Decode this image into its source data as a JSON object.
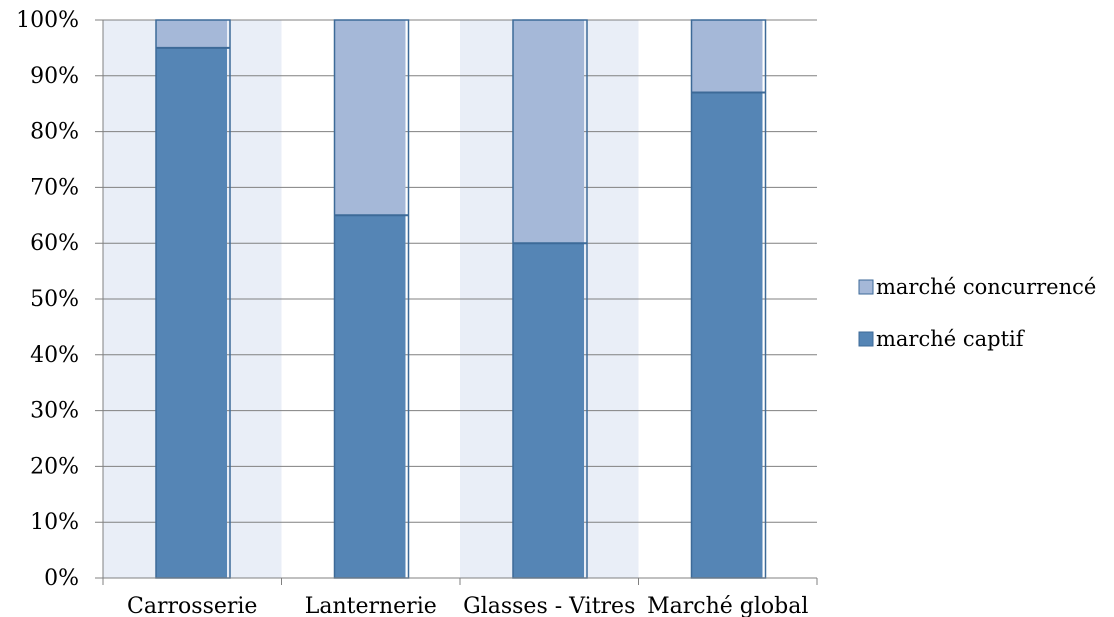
{
  "chart_data": {
    "type": "bar",
    "stacked": true,
    "percent": true,
    "categories": [
      "Carrosserie",
      "Lanternerie",
      "Glasses - Vitres",
      "Marché global"
    ],
    "series": [
      {
        "name": "marché captif",
        "values": [
          95,
          65,
          60,
          87
        ],
        "color": "#5585b5"
      },
      {
        "name": "marché concurrencé",
        "values": [
          5,
          35,
          40,
          13
        ],
        "color": "#a5b8d8"
      }
    ],
    "ylim": [
      0,
      100
    ],
    "yticks": [
      "0%",
      "10%",
      "20%",
      "30%",
      "40%",
      "50%",
      "60%",
      "70%",
      "80%",
      "90%",
      "100%"
    ],
    "grid": true,
    "legend_position": "right",
    "background_bands": [
      "#e9eef7",
      "#ffffff"
    ],
    "edge_color": "#3d6a98"
  }
}
